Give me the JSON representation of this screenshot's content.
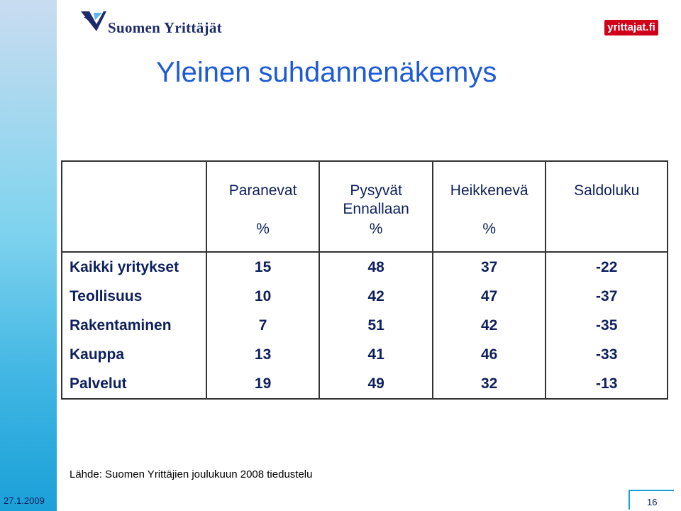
{
  "header": {
    "org_logo_text": "Suomen Yrittäjät",
    "brand_badge": "yrittajat.fi"
  },
  "title": "Yleinen suhdannenäkemys",
  "table": {
    "columns": [
      {
        "line1": "Paranevat",
        "line2": "",
        "unit": "%"
      },
      {
        "line1": "Pysyvät",
        "line2": "Ennallaan",
        "unit": "%"
      },
      {
        "line1": "Heikkenevä",
        "line2": "",
        "unit": "%"
      },
      {
        "line1": "Saldoluku",
        "line2": "",
        "unit": ""
      }
    ],
    "rows": [
      {
        "label": "Kaikki yritykset",
        "values": [
          "15",
          "48",
          "37",
          "-22"
        ]
      },
      {
        "label": "Teollisuus",
        "values": [
          "10",
          "42",
          "47",
          "-37"
        ]
      },
      {
        "label": "Rakentaminen",
        "values": [
          "7",
          "51",
          "42",
          "-35"
        ]
      },
      {
        "label": "Kauppa",
        "values": [
          "13",
          "41",
          "46",
          "-33"
        ]
      },
      {
        "label": "Palvelut",
        "values": [
          "19",
          "49",
          "32",
          "-13"
        ]
      }
    ]
  },
  "source": "Lähde: Suomen Yrittäjien joulukuun 2008 tiedustelu",
  "footer": {
    "date": "27.1.2009",
    "page_number": "16"
  }
}
